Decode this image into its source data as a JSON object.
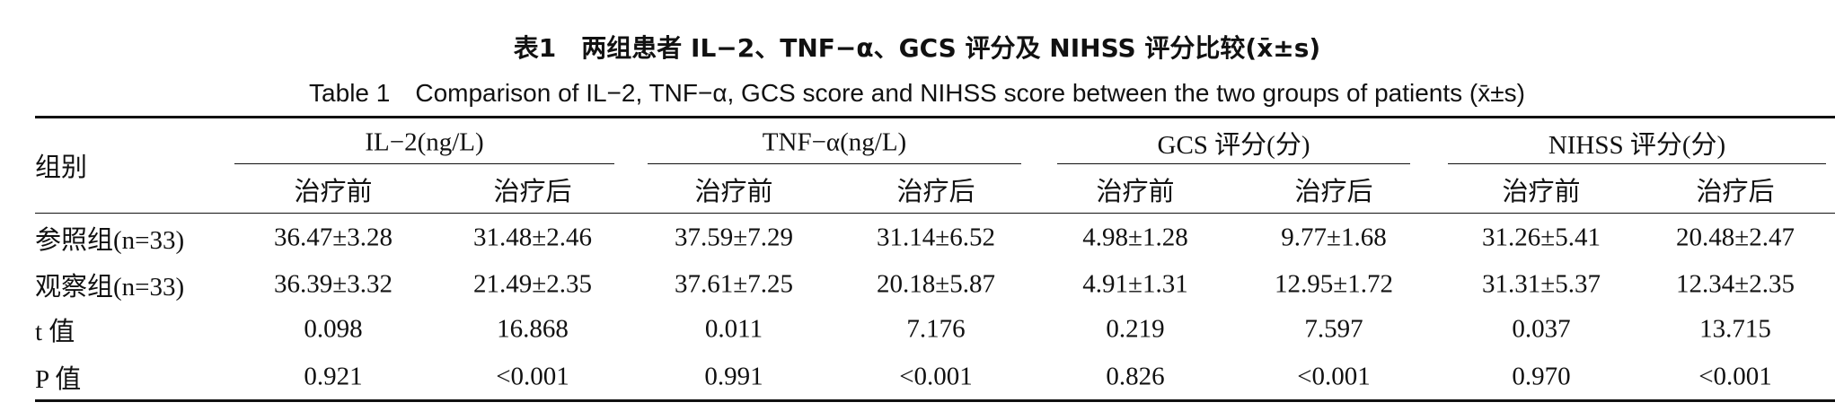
{
  "title_cn": "表1　两组患者 IL−2、TNF−α、GCS 评分及 NIHSS 评分比较(x̄±s)",
  "title_en": "Table 1　Comparison of IL−2, TNF−α, GCS score and NIHSS score between the two groups of patients (x̄±s)",
  "table": {
    "corner": "组别",
    "groups": [
      "IL−2(ng/L)",
      "TNF−α(ng/L)",
      "GCS 评分(分)",
      "NIHSS 评分(分)"
    ],
    "subheaders": [
      "治疗前",
      "治疗后",
      "治疗前",
      "治疗后",
      "治疗前",
      "治疗后",
      "治疗前",
      "治疗后"
    ],
    "rows": [
      [
        "参照组(n=33)",
        "36.47±3.28",
        "31.48±2.46",
        "37.59±7.29",
        "31.14±6.52",
        "4.98±1.28",
        "9.77±1.68",
        "31.26±5.41",
        "20.48±2.47"
      ],
      [
        "观察组(n=33)",
        "36.39±3.32",
        "21.49±2.35",
        "37.61±7.25",
        "20.18±5.87",
        "4.91±1.31",
        "12.95±1.72",
        "31.31±5.37",
        "12.34±2.35"
      ],
      [
        "t 值",
        "0.098",
        "16.868",
        "0.011",
        "7.176",
        "0.219",
        "7.597",
        "0.037",
        "13.715"
      ],
      [
        "P 值",
        "0.921",
        "<0.001",
        "0.991",
        "<0.001",
        "0.826",
        "<0.001",
        "0.970",
        "<0.001"
      ]
    ]
  }
}
